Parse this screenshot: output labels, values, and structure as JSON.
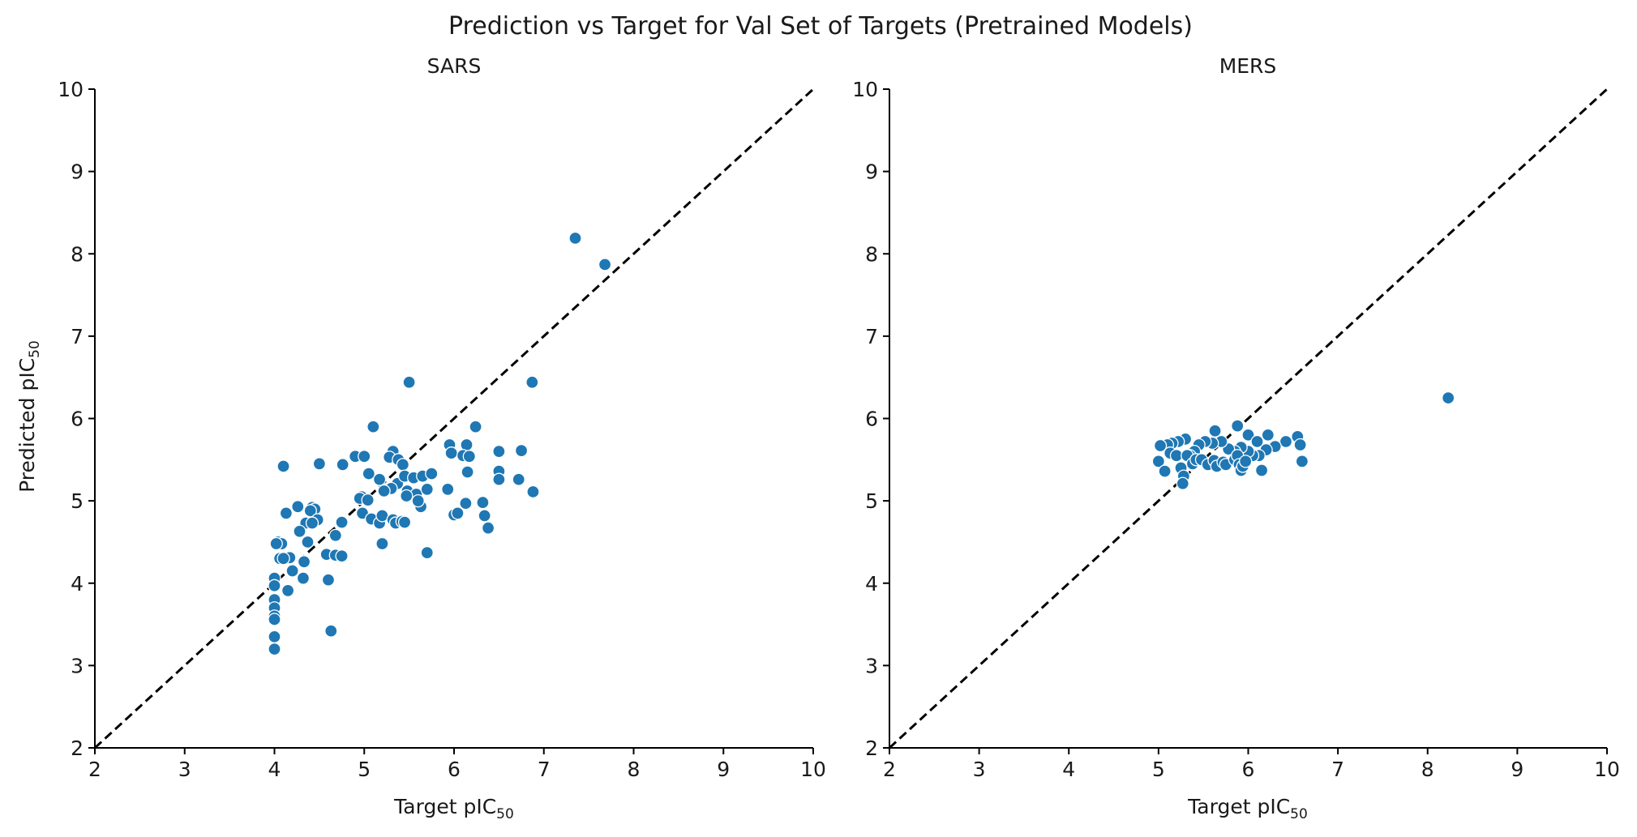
{
  "figure": {
    "title": "Prediction vs Target for Val Set of Targets (Pretrained Models)"
  },
  "chart_data": [
    {
      "type": "scatter",
      "title": "SARS",
      "xlabel": "Target pIC",
      "xlabel_sub": "50",
      "ylabel": "Predicted pIC",
      "ylabel_sub": "50",
      "xlim": [
        2,
        10
      ],
      "ylim": [
        2,
        10
      ],
      "xticks": [
        "2",
        "3",
        "4",
        "5",
        "6",
        "7",
        "8",
        "9",
        "10"
      ],
      "yticks": [
        "2",
        "3",
        "4",
        "5",
        "6",
        "7",
        "8",
        "9",
        "10"
      ],
      "reference_line": "y = x (dashed)",
      "point_color": "#1f77b4",
      "points": [
        [
          7.35,
          8.19
        ],
        [
          7.68,
          7.87
        ],
        [
          5.5,
          6.44
        ],
        [
          6.87,
          6.44
        ],
        [
          5.1,
          5.9
        ],
        [
          6.24,
          5.9
        ],
        [
          4.1,
          5.42
        ],
        [
          4.5,
          5.45
        ],
        [
          4.76,
          5.44
        ],
        [
          4.9,
          5.54
        ],
        [
          5.0,
          5.54
        ],
        [
          5.32,
          5.6
        ],
        [
          5.28,
          5.53
        ],
        [
          5.38,
          5.5
        ],
        [
          5.43,
          5.44
        ],
        [
          5.95,
          5.68
        ],
        [
          6.14,
          5.68
        ],
        [
          5.97,
          5.58
        ],
        [
          6.1,
          5.55
        ],
        [
          6.17,
          5.54
        ],
        [
          6.5,
          5.6
        ],
        [
          6.75,
          5.61
        ],
        [
          6.5,
          5.36
        ],
        [
          6.15,
          5.35
        ],
        [
          6.5,
          5.26
        ],
        [
          6.72,
          5.26
        ],
        [
          6.88,
          5.11
        ],
        [
          5.05,
          5.33
        ],
        [
          5.17,
          5.26
        ],
        [
          5.37,
          5.21
        ],
        [
          5.3,
          5.15
        ],
        [
          5.22,
          5.12
        ],
        [
          5.45,
          5.3
        ],
        [
          5.55,
          5.28
        ],
        [
          5.65,
          5.3
        ],
        [
          5.75,
          5.33
        ],
        [
          5.48,
          5.12
        ],
        [
          5.58,
          5.08
        ],
        [
          5.47,
          5.06
        ],
        [
          5.7,
          5.14
        ],
        [
          5.93,
          5.14
        ],
        [
          5.63,
          4.93
        ],
        [
          5.6,
          5.0
        ],
        [
          6.13,
          4.97
        ],
        [
          6.32,
          4.98
        ],
        [
          6.34,
          4.82
        ],
        [
          6.38,
          4.67
        ],
        [
          6.0,
          4.83
        ],
        [
          6.04,
          4.85
        ],
        [
          4.97,
          5.05
        ],
        [
          4.95,
          5.03
        ],
        [
          5.04,
          5.01
        ],
        [
          4.98,
          4.85
        ],
        [
          5.08,
          4.78
        ],
        [
          5.17,
          4.73
        ],
        [
          5.2,
          4.82
        ],
        [
          5.32,
          4.77
        ],
        [
          5.35,
          4.73
        ],
        [
          5.42,
          4.75
        ],
        [
          5.45,
          4.74
        ],
        [
          5.2,
          4.48
        ],
        [
          5.7,
          4.37
        ],
        [
          4.13,
          4.85
        ],
        [
          4.26,
          4.93
        ],
        [
          4.42,
          4.92
        ],
        [
          4.45,
          4.9
        ],
        [
          4.4,
          4.88
        ],
        [
          4.48,
          4.77
        ],
        [
          4.35,
          4.73
        ],
        [
          4.42,
          4.73
        ],
        [
          4.28,
          4.63
        ],
        [
          4.37,
          4.5
        ],
        [
          4.68,
          4.58
        ],
        [
          4.75,
          4.74
        ],
        [
          4.58,
          4.35
        ],
        [
          4.68,
          4.34
        ],
        [
          4.75,
          4.33
        ],
        [
          4.04,
          4.5
        ],
        [
          4.08,
          4.48
        ],
        [
          4.02,
          4.48
        ],
        [
          4.06,
          4.3
        ],
        [
          4.17,
          4.31
        ],
        [
          4.33,
          4.26
        ],
        [
          4.2,
          4.15
        ],
        [
          4.1,
          4.3
        ],
        [
          4.0,
          4.06
        ],
        [
          4.32,
          4.06
        ],
        [
          4.6,
          4.04
        ],
        [
          4.15,
          3.91
        ],
        [
          4.0,
          3.97
        ],
        [
          4.0,
          3.8
        ],
        [
          4.0,
          3.7
        ],
        [
          4.0,
          3.6
        ],
        [
          4.0,
          3.56
        ],
        [
          4.0,
          3.35
        ],
        [
          4.0,
          3.2
        ],
        [
          4.63,
          3.42
        ]
      ]
    },
    {
      "type": "scatter",
      "title": "MERS",
      "xlabel": "Target pIC",
      "xlabel_sub": "50",
      "xlim": [
        2,
        10
      ],
      "ylim": [
        2,
        10
      ],
      "xticks": [
        "2",
        "3",
        "4",
        "5",
        "6",
        "7",
        "8",
        "9",
        "10"
      ],
      "yticks": [
        "2",
        "3",
        "4",
        "5",
        "6",
        "7",
        "8",
        "9",
        "10"
      ],
      "reference_line": "y = x (dashed)",
      "point_color": "#1f77b4",
      "points": [
        [
          8.23,
          6.25
        ],
        [
          5.88,
          5.91
        ],
        [
          5.63,
          5.85
        ],
        [
          6.0,
          5.8
        ],
        [
          6.22,
          5.8
        ],
        [
          6.55,
          5.78
        ],
        [
          6.42,
          5.72
        ],
        [
          6.1,
          5.72
        ],
        [
          6.3,
          5.66
        ],
        [
          6.2,
          5.62
        ],
        [
          6.58,
          5.68
        ],
        [
          6.6,
          5.48
        ],
        [
          6.15,
          5.37
        ],
        [
          6.12,
          5.55
        ],
        [
          6.05,
          5.55
        ],
        [
          6.0,
          5.6
        ],
        [
          5.92,
          5.65
        ],
        [
          5.85,
          5.6
        ],
        [
          5.78,
          5.63
        ],
        [
          5.7,
          5.72
        ],
        [
          5.6,
          5.7
        ],
        [
          5.52,
          5.72
        ],
        [
          5.45,
          5.68
        ],
        [
          5.4,
          5.6
        ],
        [
          5.35,
          5.55
        ],
        [
          5.3,
          5.75
        ],
        [
          5.22,
          5.72
        ],
        [
          5.15,
          5.7
        ],
        [
          5.1,
          5.68
        ],
        [
          5.02,
          5.67
        ],
        [
          5.0,
          5.48
        ],
        [
          5.07,
          5.36
        ],
        [
          5.13,
          5.58
        ],
        [
          5.2,
          5.55
        ],
        [
          5.25,
          5.4
        ],
        [
          5.28,
          5.3
        ],
        [
          5.27,
          5.21
        ],
        [
          5.32,
          5.55
        ],
        [
          5.38,
          5.45
        ],
        [
          5.42,
          5.5
        ],
        [
          5.48,
          5.5
        ],
        [
          5.55,
          5.44
        ],
        [
          5.62,
          5.49
        ],
        [
          5.65,
          5.42
        ],
        [
          5.72,
          5.47
        ],
        [
          5.75,
          5.44
        ],
        [
          5.85,
          5.5
        ],
        [
          5.88,
          5.55
        ],
        [
          5.9,
          5.44
        ],
        [
          5.92,
          5.37
        ],
        [
          5.94,
          5.42
        ],
        [
          5.97,
          5.48
        ]
      ]
    }
  ]
}
